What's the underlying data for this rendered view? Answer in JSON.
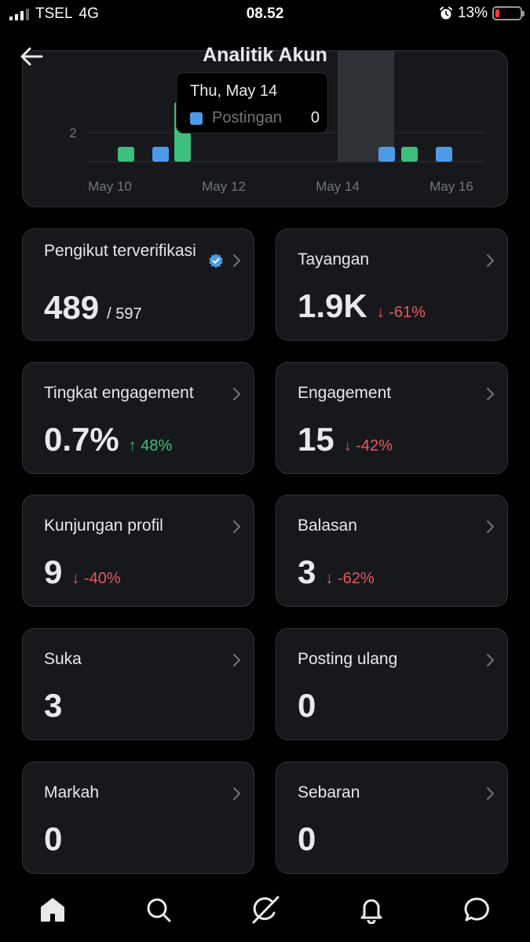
{
  "status_bar": {
    "carrier": "TSEL",
    "network": "4G",
    "time": "08.52",
    "battery": "13%"
  },
  "header": {
    "title": "Analitik Akun"
  },
  "chart_data": {
    "type": "bar",
    "x_ticks": [
      "May 10",
      "May 12",
      "May 14",
      "May 16"
    ],
    "y_ticks": [
      "2"
    ],
    "series": [
      {
        "name": "Postingan",
        "color": "#4c9be9",
        "bars": [
          {
            "date": "May 10",
            "value": 1
          },
          {
            "date": "May 15",
            "value": 1
          },
          {
            "date": "May 16",
            "value": 1
          }
        ]
      },
      {
        "color": "#3cbf7c",
        "bars": [
          {
            "date": "May 10",
            "value": 1
          },
          {
            "date": "May 11",
            "value": 4
          },
          {
            "date": "May 15",
            "value": 1
          }
        ]
      }
    ],
    "highlighted_date": "May 14"
  },
  "tooltip": {
    "date": "Thu, May 14",
    "label": "Postingan",
    "value": "0"
  },
  "stats": {
    "verified_followers": {
      "label": "Pengikut terverifikasi",
      "value": "489",
      "total": "/ 597"
    },
    "impressions": {
      "label": "Tayangan",
      "value": "1.9K",
      "change": "↓ -61%",
      "direction": "down"
    },
    "engagement_rate": {
      "label": "Tingkat engagement",
      "value": "0.7%",
      "change": "↑ 48%",
      "direction": "up"
    },
    "engagements": {
      "label": "Engagement",
      "value": "15",
      "change": "↓ -42%",
      "direction": "down"
    },
    "profile_visits": {
      "label": "Kunjungan profil",
      "value": "9",
      "change": "↓ -40%",
      "direction": "down"
    },
    "replies": {
      "label": "Balasan",
      "value": "3",
      "change": "↓ -62%",
      "direction": "down"
    },
    "likes": {
      "label": "Suka",
      "value": "3"
    },
    "reposts": {
      "label": "Posting ulang",
      "value": "0"
    },
    "bookmarks": {
      "label": "Markah",
      "value": "0"
    },
    "shares": {
      "label": "Sebaran",
      "value": "0"
    }
  },
  "colors": {
    "background": "#000000",
    "card": "#16181c",
    "border": "#2f3336",
    "blue": "#4c9be9",
    "green": "#3cbf7c",
    "red": "#e8575e"
  },
  "nav": {
    "icons": [
      "home-icon",
      "search-icon",
      "grok-icon",
      "notifications-icon",
      "messages-icon"
    ]
  }
}
